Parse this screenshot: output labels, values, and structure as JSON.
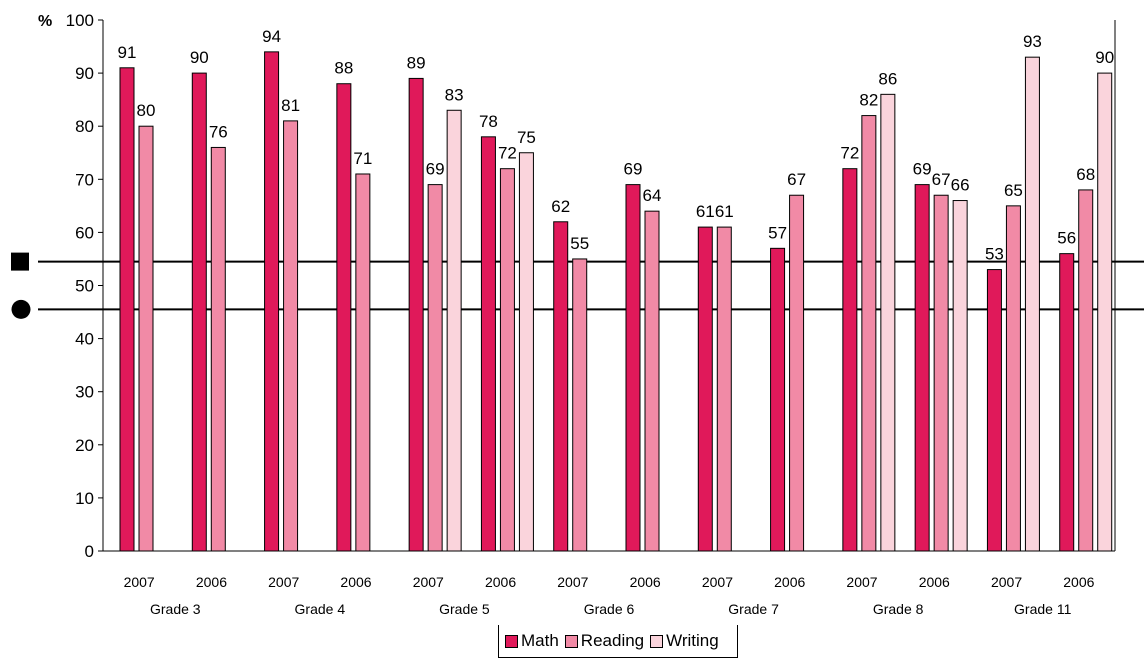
{
  "colors": {
    "math": "#e0195a",
    "reading": "#f18aa6",
    "writing": "#fad4dc"
  },
  "chart_data": {
    "type": "bar",
    "unit_label": "%",
    "ylim": [
      0,
      100
    ],
    "yticks": [
      "0",
      "10",
      "20",
      "30",
      "40",
      "50",
      "60",
      "70",
      "80",
      "90",
      "100"
    ],
    "reference_lines": [
      {
        "value": 54.5,
        "marker": "square"
      },
      {
        "value": 45.5,
        "marker": "circle"
      }
    ],
    "groups": [
      {
        "name": "Grade 3",
        "years": [
          "2007",
          "2006"
        ]
      },
      {
        "name": "Grade 4",
        "years": [
          "2007",
          "2006"
        ]
      },
      {
        "name": "Grade 5",
        "years": [
          "2007",
          "2006"
        ]
      },
      {
        "name": "Grade 6",
        "years": [
          "2007",
          "2006"
        ]
      },
      {
        "name": "Grade 7",
        "years": [
          "2007",
          "2006"
        ]
      },
      {
        "name": "Grade 8",
        "years": [
          "2007",
          "2006"
        ]
      },
      {
        "name": "Grade 11",
        "years": [
          "2007",
          "2006"
        ]
      }
    ],
    "series": [
      {
        "name": "Math",
        "values": [
          91,
          90,
          94,
          88,
          89,
          78,
          62,
          69,
          61,
          57,
          72,
          69,
          53,
          56
        ]
      },
      {
        "name": "Reading",
        "values": [
          80,
          76,
          81,
          71,
          69,
          72,
          55,
          64,
          61,
          67,
          82,
          67,
          65,
          68
        ]
      },
      {
        "name": "Writing",
        "values": [
          null,
          null,
          null,
          null,
          83,
          75,
          null,
          null,
          null,
          null,
          86,
          66,
          93,
          90
        ]
      }
    ],
    "legend_position": "bottom"
  }
}
